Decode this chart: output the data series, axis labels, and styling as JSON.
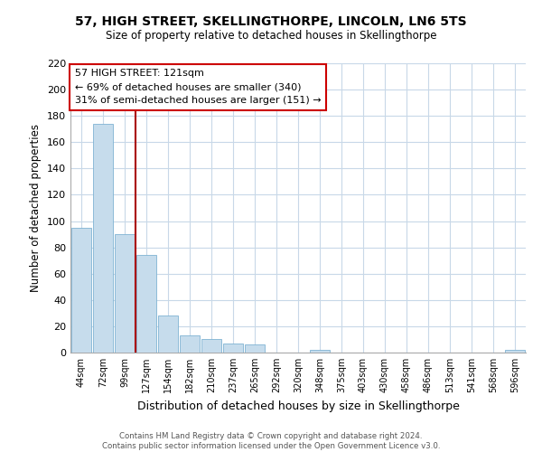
{
  "title": "57, HIGH STREET, SKELLINGTHORPE, LINCOLN, LN6 5TS",
  "subtitle": "Size of property relative to detached houses in Skellingthorpe",
  "xlabel": "Distribution of detached houses by size in Skellingthorpe",
  "ylabel": "Number of detached properties",
  "bin_labels": [
    "44sqm",
    "72sqm",
    "99sqm",
    "127sqm",
    "154sqm",
    "182sqm",
    "210sqm",
    "237sqm",
    "265sqm",
    "292sqm",
    "320sqm",
    "348sqm",
    "375sqm",
    "403sqm",
    "430sqm",
    "458sqm",
    "486sqm",
    "513sqm",
    "541sqm",
    "568sqm",
    "596sqm"
  ],
  "bar_values": [
    95,
    174,
    90,
    74,
    28,
    13,
    10,
    7,
    6,
    0,
    0,
    2,
    0,
    0,
    0,
    0,
    0,
    0,
    0,
    0,
    2
  ],
  "bar_color": "#c6dcec",
  "bar_edge_color": "#7fb3d3",
  "ylim": [
    0,
    220
  ],
  "yticks": [
    0,
    20,
    40,
    60,
    80,
    100,
    120,
    140,
    160,
    180,
    200,
    220
  ],
  "vline_x": 2.5,
  "vline_color": "#aa0000",
  "annotation_line1": "57 HIGH STREET: 121sqm",
  "annotation_line2": "← 69% of detached houses are smaller (340)",
  "annotation_line3": "31% of semi-detached houses are larger (151) →",
  "footer_line1": "Contains HM Land Registry data © Crown copyright and database right 2024.",
  "footer_line2": "Contains public sector information licensed under the Open Government Licence v3.0.",
  "background_color": "#ffffff",
  "grid_color": "#c8d8e8"
}
